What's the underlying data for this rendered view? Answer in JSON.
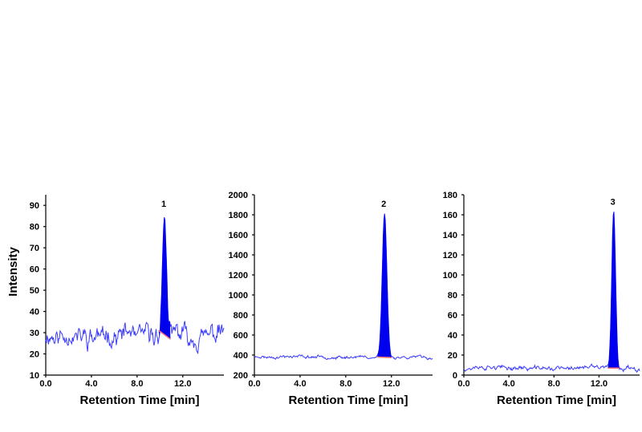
{
  "y_axis_title": "Intensity",
  "chart_data": [
    {
      "type": "line",
      "title": "",
      "xlabel": "Retention Time [min]",
      "ylabel": "Intensity",
      "xlim": [
        0,
        15.6
      ],
      "ylim": [
        10,
        95
      ],
      "x_ticks": [
        0.0,
        4.0,
        8.0,
        12.0
      ],
      "x_tick_labels": [
        "0.0",
        "4.0",
        "8.0",
        "12.0"
      ],
      "y_ticks": [
        10,
        20,
        30,
        40,
        50,
        60,
        70,
        80,
        90
      ],
      "y_tick_labels": [
        "10",
        "20",
        "30",
        "40",
        "50",
        "60",
        "70",
        "80",
        "90"
      ],
      "line_color": "#3b3bff",
      "peak_color": "#0000ee",
      "baseline_mean": 29,
      "noise_amplitude": 6,
      "noise_seed": 11,
      "peak": {
        "label": "1",
        "apex_rt": 10.4,
        "apex_intensity": 86,
        "start_rt": 9.9,
        "end_rt": 10.9,
        "base_start": 31,
        "base_end": 27
      }
    },
    {
      "type": "line",
      "title": "",
      "xlabel": "Retention Time [min]",
      "ylabel": "",
      "xlim": [
        0,
        15.6
      ],
      "ylim": [
        200,
        2000
      ],
      "x_ticks": [
        0.0,
        4.0,
        8.0,
        12.0
      ],
      "x_tick_labels": [
        "0.0",
        "4.0",
        "8.0",
        "12.0"
      ],
      "y_ticks": [
        200,
        400,
        600,
        800,
        1000,
        1200,
        1400,
        1600,
        1800,
        2000
      ],
      "y_tick_labels": [
        "200",
        "400",
        "600",
        "800",
        "1000",
        "1200",
        "1400",
        "1600",
        "1800",
        "2000"
      ],
      "line_color": "#3b3bff",
      "peak_color": "#0000ee",
      "baseline_mean": 380,
      "noise_amplitude": 20,
      "noise_seed": 23,
      "peak": {
        "label": "2",
        "apex_rt": 11.4,
        "apex_intensity": 1810,
        "start_rt": 10.8,
        "end_rt": 12.0,
        "base_start": 380,
        "base_end": 375
      }
    },
    {
      "type": "line",
      "title": "",
      "xlabel": "Retention Time [min]",
      "ylabel": "",
      "xlim": [
        0,
        15.6
      ],
      "ylim": [
        0,
        180
      ],
      "x_ticks": [
        0.0,
        4.0,
        8.0,
        12.0
      ],
      "x_tick_labels": [
        "0.0",
        "4.0",
        "8.0",
        "12.0"
      ],
      "y_ticks": [
        0,
        20,
        40,
        60,
        80,
        100,
        120,
        140,
        160,
        180
      ],
      "y_tick_labels": [
        "0",
        "20",
        "40",
        "60",
        "80",
        "100",
        "120",
        "140",
        "160",
        "180"
      ],
      "line_color": "#3b3bff",
      "peak_color": "#0000ee",
      "baseline_mean": 7,
      "noise_amplitude": 3,
      "noise_seed": 37,
      "peak": {
        "label": "3",
        "apex_rt": 13.3,
        "apex_intensity": 163,
        "start_rt": 12.8,
        "end_rt": 13.8,
        "base_start": 7,
        "base_end": 7
      }
    }
  ]
}
